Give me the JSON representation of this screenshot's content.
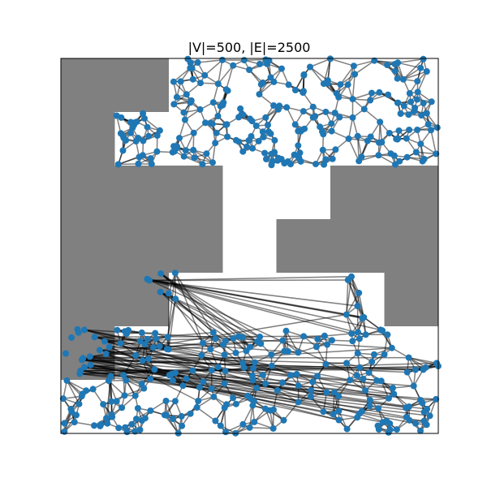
{
  "chart_data": {
    "type": "graph",
    "title": "|V|=500, |E|=2500",
    "xlim": [
      0,
      7
    ],
    "ylim": [
      0,
      7
    ],
    "colors": {
      "obstacle": "#808080",
      "node": "#1f77b4",
      "edge": "#000000",
      "frame": "#000000"
    },
    "obstacles": [
      [
        0,
        6,
        2,
        1
      ],
      [
        0,
        5,
        1,
        1
      ],
      [
        0,
        4,
        3,
        1
      ],
      [
        0,
        3,
        3,
        1
      ],
      [
        0,
        2,
        2,
        1
      ],
      [
        0,
        1,
        1,
        1
      ],
      [
        5,
        4,
        2,
        1
      ],
      [
        4,
        3,
        3,
        1
      ],
      [
        6,
        2,
        1,
        1
      ]
    ],
    "node_regions": [
      [
        2.0,
        6.0,
        5.0,
        1.0,
        90
      ],
      [
        1.0,
        5.0,
        6.0,
        1.0,
        150
      ],
      [
        1.0,
        1.5,
        1.0,
        0.5,
        8
      ],
      [
        1.6,
        2.2,
        0.6,
        0.8,
        7
      ],
      [
        5.15,
        2.1,
        0.6,
        0.9,
        7
      ],
      [
        0.0,
        0.0,
        7.0,
        1.95,
        238
      ]
    ],
    "num_nodes": 500,
    "num_edges": 2500,
    "seed": 20240611
  }
}
